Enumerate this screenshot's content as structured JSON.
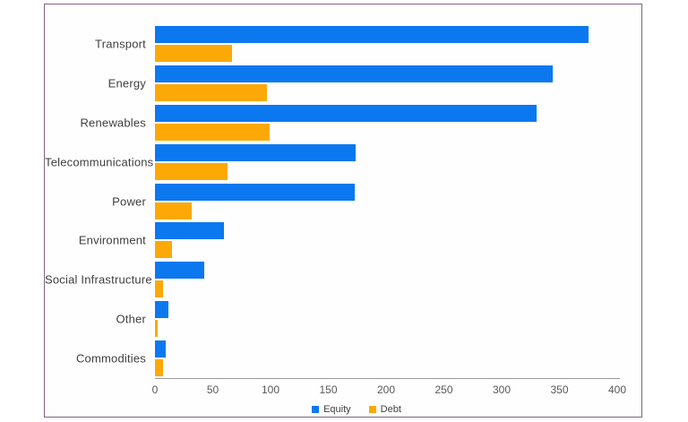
{
  "frame": {
    "border_color": "#7f6382",
    "background": "#fffefe"
  },
  "chart_data": {
    "type": "bar",
    "orientation": "horizontal",
    "title": "",
    "xlabel": "",
    "ylabel": "",
    "categories": [
      "Transport",
      "Energy",
      "Renewables",
      "Telecommunications",
      "Power",
      "Environment",
      "Social Infrastructure",
      "Other",
      "Commodities"
    ],
    "series": [
      {
        "name": "Equity",
        "color": "#0b78f0",
        "values": [
          375,
          344,
          330,
          174,
          173,
          60,
          43,
          12,
          9
        ]
      },
      {
        "name": "Debt",
        "color": "#fca907",
        "values": [
          67,
          97,
          99,
          63,
          32,
          15,
          7,
          2,
          7
        ]
      }
    ],
    "xlim": [
      0,
      400
    ],
    "x_ticks": [
      "0",
      "50",
      "100",
      "150",
      "200",
      "250",
      "300",
      "350",
      "400"
    ],
    "grid": false,
    "legend_position": "bottom-center",
    "axis_line_color": "#9b9b9b",
    "tick_label_color": "#595959",
    "category_label_color": "#3f3f3f"
  }
}
